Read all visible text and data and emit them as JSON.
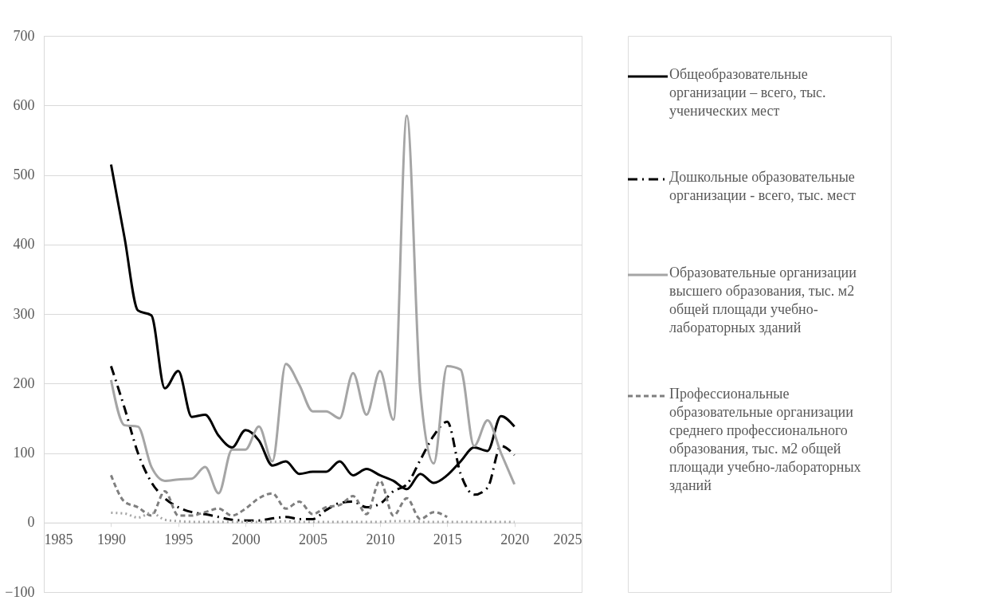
{
  "chart_data": {
    "type": "line",
    "x": [
      1990,
      1991,
      1992,
      1993,
      1994,
      1995,
      1996,
      1997,
      1998,
      1999,
      2000,
      2001,
      2002,
      2003,
      2004,
      2005,
      2006,
      2007,
      2008,
      2009,
      2010,
      2011,
      2012,
      2013,
      2014,
      2015,
      2016,
      2017,
      2018,
      2019,
      2020
    ],
    "series": [
      {
        "name": "Общеобразовательные организации – всего, тыс. ученических мест",
        "color": "#000000",
        "line_style": "solid",
        "values": [
          515,
          410,
          305,
          298,
          193,
          218,
          152,
          155,
          125,
          108,
          133,
          118,
          82,
          88,
          70,
          73,
          73,
          88,
          68,
          77,
          68,
          60,
          48,
          70,
          57,
          68,
          88,
          108,
          103,
          153,
          138
        ]
      },
      {
        "name": "Дошкольные образовательные организации - всего, тыс. мест",
        "color": "#000000",
        "line_style": "dashdot",
        "values": [
          225,
          165,
          100,
          58,
          35,
          22,
          15,
          12,
          8,
          4,
          3,
          3,
          6,
          8,
          5,
          5,
          18,
          28,
          30,
          22,
          27,
          45,
          55,
          90,
          125,
          145,
          70,
          40,
          50,
          110,
          97
        ]
      },
      {
        "name": "Образовательные организации высшего образования, тыс. м2 общей площади учебно-лабораторных зданий",
        "color": "#a5a5a5",
        "line_style": "solid",
        "values": [
          205,
          140,
          138,
          80,
          60,
          62,
          63,
          80,
          42,
          105,
          105,
          138,
          88,
          228,
          198,
          160,
          160,
          150,
          215,
          155,
          218,
          148,
          585,
          190,
          85,
          225,
          220,
          110,
          147,
          100,
          55
        ]
      },
      {
        "name": "Профессиональные образовательные организации среднего профессионального образования, тыс. м2 общей площади учебно-лабораторных зданий",
        "color": "#7f7f7f",
        "line_style": "dashed",
        "values": [
          68,
          30,
          22,
          10,
          45,
          10,
          10,
          15,
          20,
          10,
          20,
          35,
          42,
          20,
          30,
          12,
          22,
          25,
          38,
          12,
          60,
          10,
          35,
          5,
          15,
          8,
          null,
          null,
          null,
          null,
          null
        ]
      },
      {
        "color": "#a5a5a5",
        "line_style": "dotted",
        "values": [
          14,
          13,
          7,
          14,
          4,
          2,
          1,
          1,
          1,
          1,
          1,
          1,
          1,
          2,
          1,
          1,
          1,
          1,
          1,
          1,
          1,
          2,
          2,
          1,
          1,
          1,
          1,
          1,
          1,
          1,
          1
        ]
      }
    ],
    "xlim": [
      1985,
      2025
    ],
    "xticks": [
      1985,
      1990,
      1995,
      2000,
      2005,
      2010,
      2015,
      2020,
      2025
    ],
    "ylim": [
      -100,
      700
    ],
    "yticks": [
      -100,
      0,
      100,
      200,
      300,
      400,
      500,
      600,
      700
    ],
    "grid": "y",
    "legend": "right",
    "marker": "none"
  }
}
